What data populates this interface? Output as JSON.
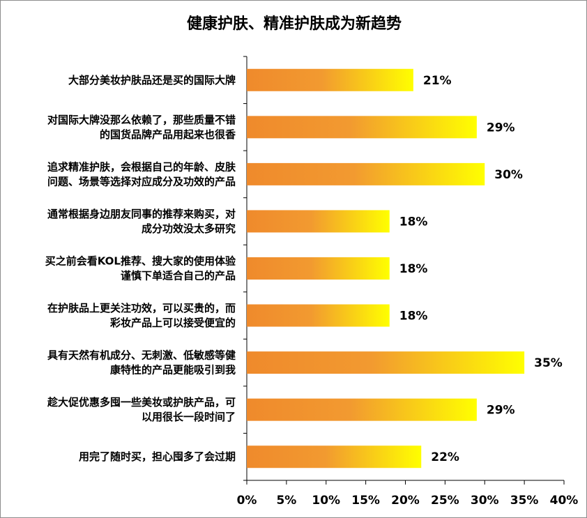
{
  "chart_data": {
    "type": "bar",
    "orientation": "horizontal",
    "title": "健康护肤、精准护肤成为新趋势",
    "categories": [
      [
        "大部分美妆护肤品还是买的国际大牌"
      ],
      [
        "对国际大牌没那么依赖了，那些质量不错",
        "的国货品牌产品用起来也很香"
      ],
      [
        "追求精准护肤，会根据自己的年龄、皮肤",
        "问题、场景等选择对应成分及功效的产品"
      ],
      [
        "通常根据身边朋友同事的推荐来购买，对",
        "成分功效没太多研究"
      ],
      [
        "买之前会看KOL推荐、搜大家的使用体验",
        "谨慎下单适合自己的产品"
      ],
      [
        "在护肤品上更关注功效，可以买贵的，而",
        "彩妆产品上可以接受便宜的"
      ],
      [
        "具有天然有机成分、无刺激、低敏感等健",
        "康特性的产品更能吸引到我"
      ],
      [
        "趁大促优惠多囤一些美妆或护肤产品，可",
        "以用很长一段时间了"
      ],
      [
        "用完了随时买，担心囤多了会过期"
      ]
    ],
    "values": [
      21,
      29,
      30,
      18,
      18,
      18,
      35,
      29,
      22
    ],
    "value_labels": [
      "21%",
      "29%",
      "30%",
      "18%",
      "18%",
      "18%",
      "35%",
      "29%",
      "22%"
    ],
    "xlim": [
      0,
      40
    ],
    "x_ticks": [
      "0%",
      "5%",
      "10%",
      "15%",
      "20%",
      "25%",
      "30%",
      "35%",
      "40%"
    ],
    "grid": false,
    "legend": "none",
    "colors": {
      "bar_start": "#ef8a2c",
      "bar_mid": "#f29a30",
      "bar_end": "#ffff00",
      "axis": "#000000"
    }
  }
}
